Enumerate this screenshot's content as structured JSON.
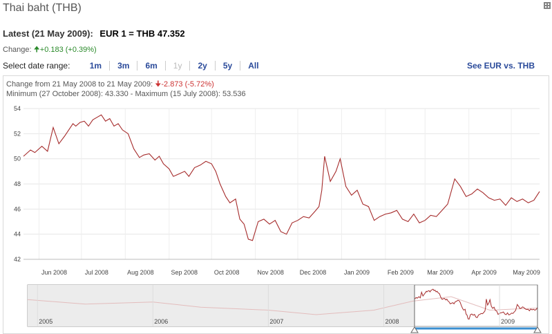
{
  "header": {
    "title": "Thai baht (THB)",
    "latest_label": "Latest (21 May 2009):",
    "latest_value": "EUR 1 = THB 47.352",
    "change_label": "Change:",
    "change_value": "+0.183 (+0.39%)"
  },
  "range": {
    "label": "Select date range:",
    "options": [
      "1m",
      "3m",
      "6m",
      "1y",
      "2y",
      "5y",
      "All"
    ],
    "selected": "1y",
    "compare_link": "See EUR vs. THB"
  },
  "info": {
    "change_label": "Change from 21 May 2008 to 21 May 2009:",
    "change_value": "-2.873 (-5.72%)",
    "minmax": "Minimum (27 October 2008): 43.330 - Maximum (15 July 2008): 53.536"
  },
  "colors": {
    "line": "#a52a2a",
    "up": "#2a8a2a",
    "down": "#cc3333",
    "link": "#2a4a9a"
  },
  "chart_data": [
    {
      "type": "line",
      "title": "",
      "x_tick_labels": [
        "Jun 2008",
        "Jul 2008",
        "Aug 2008",
        "Sep 2008",
        "Oct 2008",
        "Nov 2008",
        "Dec 2008",
        "Jan 2009",
        "Feb 2009",
        "Mar 2009",
        "Apr 2009",
        "May 2009"
      ],
      "y_tick_labels": [
        "42",
        "44",
        "46",
        "48",
        "50",
        "52",
        "54"
      ],
      "ylim": [
        42,
        54
      ],
      "xlim": [
        "2008-05-21",
        "2009-05-21"
      ],
      "grid": true,
      "series": [
        {
          "x": [
            "2008-05-21",
            "2008-05-26",
            "2008-05-29",
            "2008-06-03",
            "2008-06-07",
            "2008-06-11",
            "2008-06-15",
            "2008-06-19",
            "2008-06-22",
            "2008-06-25",
            "2008-06-27",
            "2008-06-30",
            "2008-07-03",
            "2008-07-06",
            "2008-07-09",
            "2008-07-12",
            "2008-07-15",
            "2008-07-18",
            "2008-07-21",
            "2008-07-24",
            "2008-07-27",
            "2008-07-30",
            "2008-08-03",
            "2008-08-07",
            "2008-08-11",
            "2008-08-14",
            "2008-08-18",
            "2008-08-22",
            "2008-08-25",
            "2008-08-28",
            "2008-09-01",
            "2008-09-04",
            "2008-09-08",
            "2008-09-12",
            "2008-09-15",
            "2008-09-19",
            "2008-09-23",
            "2008-09-27",
            "2008-10-01",
            "2008-10-04",
            "2008-10-07",
            "2008-10-11",
            "2008-10-14",
            "2008-10-18",
            "2008-10-21",
            "2008-10-24",
            "2008-10-27",
            "2008-10-30",
            "2008-11-03",
            "2008-11-07",
            "2008-11-11",
            "2008-11-15",
            "2008-11-19",
            "2008-11-23",
            "2008-11-27",
            "2008-12-01",
            "2008-12-05",
            "2008-12-09",
            "2008-12-13",
            "2008-12-16",
            "2008-12-18",
            "2008-12-20",
            "2008-12-24",
            "2008-12-28",
            "2008-12-31",
            "2009-01-04",
            "2009-01-08",
            "2009-01-12",
            "2009-01-16",
            "2009-01-20",
            "2009-01-24",
            "2009-01-28",
            "2009-02-01",
            "2009-02-05",
            "2009-02-09",
            "2009-02-13",
            "2009-02-17",
            "2009-02-21",
            "2009-02-25",
            "2009-03-01",
            "2009-03-05",
            "2009-03-09",
            "2009-03-13",
            "2009-03-17",
            "2009-03-19",
            "2009-03-22",
            "2009-03-26",
            "2009-03-30",
            "2009-04-03",
            "2009-04-07",
            "2009-04-11",
            "2009-04-15",
            "2009-04-19",
            "2009-04-23",
            "2009-04-27",
            "2009-05-01",
            "2009-05-05",
            "2009-05-09",
            "2009-05-13",
            "2009-05-17",
            "2009-05-21"
          ],
          "values": [
            50.2,
            50.7,
            50.5,
            51.0,
            50.6,
            52.5,
            51.2,
            51.8,
            52.3,
            52.8,
            52.6,
            52.9,
            53.0,
            52.6,
            53.1,
            53.3,
            53.5,
            53.0,
            53.2,
            52.6,
            52.8,
            52.3,
            52.0,
            50.8,
            50.1,
            50.3,
            50.4,
            49.9,
            50.2,
            49.6,
            49.2,
            48.6,
            48.8,
            49.0,
            48.6,
            49.3,
            49.5,
            49.8,
            49.6,
            49.0,
            48.0,
            47.0,
            46.5,
            46.8,
            45.2,
            44.8,
            43.6,
            43.5,
            45.0,
            45.2,
            44.8,
            45.1,
            44.2,
            44.0,
            44.9,
            45.1,
            45.4,
            45.3,
            45.8,
            46.2,
            47.5,
            50.2,
            48.2,
            49.0,
            50.0,
            47.8,
            47.1,
            47.5,
            46.4,
            46.2,
            45.1,
            45.4,
            45.6,
            45.7,
            45.9,
            45.2,
            45.0,
            45.6,
            44.9,
            45.1,
            45.5,
            45.4,
            45.9,
            46.4,
            47.2,
            48.4,
            47.8,
            47.0,
            47.2,
            47.6,
            47.3,
            46.9,
            46.7,
            46.8,
            46.3,
            46.9,
            46.6,
            46.8,
            46.5,
            46.7,
            47.4
          ]
        }
      ]
    },
    {
      "type": "area",
      "title": "",
      "x_tick_labels": [
        "2005",
        "2006",
        "2007",
        "2008",
        "2009"
      ],
      "grid": false,
      "series": [
        {
          "x": [
            "2004-12",
            "2005-06",
            "2006-01",
            "2006-06",
            "2007-01",
            "2007-06",
            "2007-12",
            "2008-04",
            "2008-08",
            "2008-12",
            "2009-05"
          ],
          "values": [
            50,
            48.5,
            49.2,
            47.5,
            46.5,
            45.0,
            46.5,
            49.5,
            51.0,
            46.5,
            47.2
          ]
        }
      ]
    }
  ]
}
